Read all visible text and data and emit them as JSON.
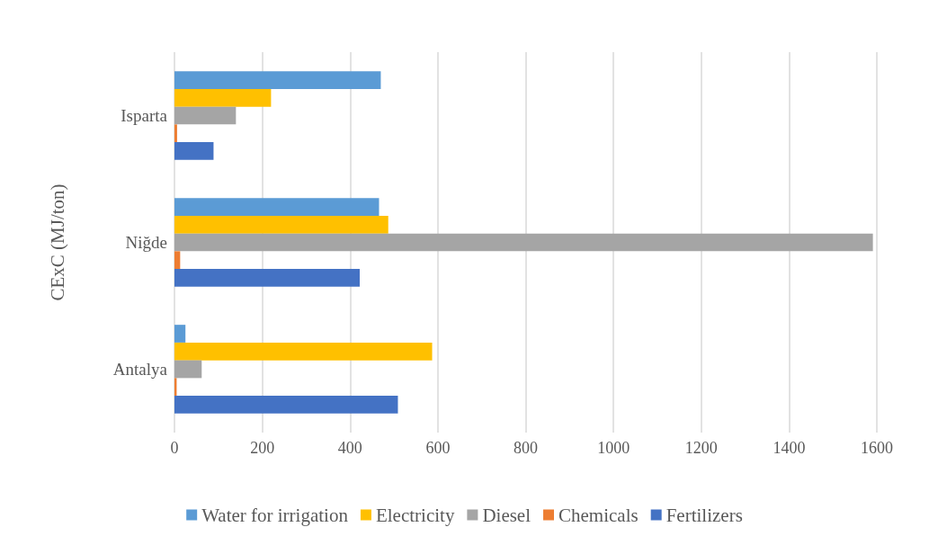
{
  "chart_data": {
    "type": "bar",
    "orientation": "horizontal",
    "ylabel": "CExC (MJ/ton)",
    "categories": [
      "Isparta",
      "Niğde",
      "Antalya"
    ],
    "series": [
      {
        "name": "Water for irrigation",
        "color": "#5b9bd5",
        "values": [
          470,
          466,
          25
        ]
      },
      {
        "name": "Electricity",
        "color": "#ffc000",
        "values": [
          220,
          487,
          587
        ]
      },
      {
        "name": "Diesel",
        "color": "#a5a5a5",
        "values": [
          140,
          1591,
          62
        ]
      },
      {
        "name": "Chemicals",
        "color": "#ed7d31",
        "values": [
          6,
          13,
          5
        ]
      },
      {
        "name": "Fertilizers",
        "color": "#4472c4",
        "values": [
          89,
          422,
          509
        ]
      }
    ],
    "xlim": [
      0,
      1600
    ],
    "xticks": [
      0,
      200,
      400,
      600,
      800,
      1000,
      1200,
      1400,
      1600
    ],
    "grid": "x",
    "legend": "bottom"
  }
}
